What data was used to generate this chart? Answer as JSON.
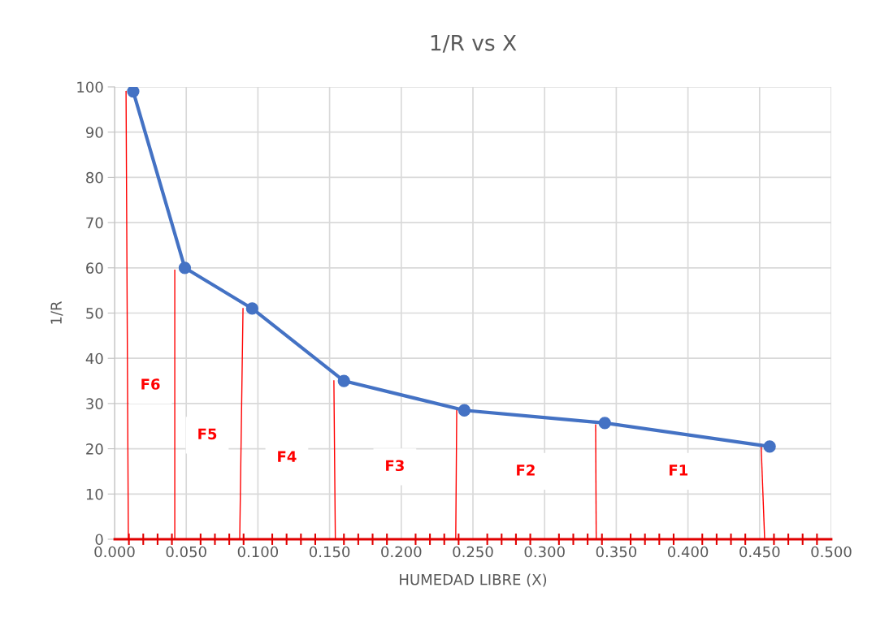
{
  "chart_data": {
    "type": "line",
    "title": "1/R vs X",
    "xlabel": "HUMEDAD LIBRE (X)",
    "ylabel": "1/R",
    "xlim": [
      0,
      0.5
    ],
    "ylim": [
      0,
      100
    ],
    "xticks": [
      {
        "value": 0,
        "label": "0.000"
      },
      {
        "value": 0.01,
        "label": null
      },
      {
        "value": 0.02,
        "label": null
      },
      {
        "value": 0.03,
        "label": null
      },
      {
        "value": 0.04,
        "label": null
      },
      {
        "value": 0.05,
        "label": "0.050"
      },
      {
        "value": 0.06,
        "label": null
      },
      {
        "value": 0.07,
        "label": null
      },
      {
        "value": 0.08,
        "label": null
      },
      {
        "value": 0.09,
        "label": null
      },
      {
        "value": 0.1,
        "label": "0.100"
      },
      {
        "value": 0.11,
        "label": null
      },
      {
        "value": 0.12,
        "label": null
      },
      {
        "value": 0.13,
        "label": null
      },
      {
        "value": 0.14,
        "label": null
      },
      {
        "value": 0.15,
        "label": "0.150"
      },
      {
        "value": 0.16,
        "label": null
      },
      {
        "value": 0.17,
        "label": null
      },
      {
        "value": 0.18,
        "label": null
      },
      {
        "value": 0.19,
        "label": null
      },
      {
        "value": 0.2,
        "label": "0.200"
      },
      {
        "value": 0.21,
        "label": null
      },
      {
        "value": 0.22,
        "label": null
      },
      {
        "value": 0.23,
        "label": null
      },
      {
        "value": 0.24,
        "label": null
      },
      {
        "value": 0.25,
        "label": "0.250"
      },
      {
        "value": 0.26,
        "label": null
      },
      {
        "value": 0.27,
        "label": null
      },
      {
        "value": 0.28,
        "label": null
      },
      {
        "value": 0.29,
        "label": null
      },
      {
        "value": 0.3,
        "label": "0.300"
      },
      {
        "value": 0.31,
        "label": null
      },
      {
        "value": 0.32,
        "label": null
      },
      {
        "value": 0.33,
        "label": null
      },
      {
        "value": 0.34,
        "label": null
      },
      {
        "value": 0.35,
        "label": "0.350"
      },
      {
        "value": 0.36,
        "label": null
      },
      {
        "value": 0.37,
        "label": null
      },
      {
        "value": 0.38,
        "label": null
      },
      {
        "value": 0.39,
        "label": null
      },
      {
        "value": 0.4,
        "label": "0.400"
      },
      {
        "value": 0.41,
        "label": null
      },
      {
        "value": 0.42,
        "label": null
      },
      {
        "value": 0.43,
        "label": null
      },
      {
        "value": 0.44,
        "label": null
      },
      {
        "value": 0.45,
        "label": "0.450"
      },
      {
        "value": 0.46,
        "label": null
      },
      {
        "value": 0.47,
        "label": null
      },
      {
        "value": 0.48,
        "label": null
      },
      {
        "value": 0.49,
        "label": null
      },
      {
        "value": 0.5,
        "label": "0.500"
      }
    ],
    "yticks": [
      0,
      10,
      20,
      30,
      40,
      50,
      60,
      70,
      80,
      90,
      100
    ],
    "grid": true,
    "marker": "circle",
    "line_style": "solid",
    "series": [
      {
        "color": "#4472c4",
        "x": [
          0.013,
          0.049,
          0.096,
          0.16,
          0.244,
          0.342,
          0.457
        ],
        "values": [
          99,
          60,
          51,
          35,
          28.5,
          25.7,
          20.5
        ]
      },
      {
        "color": "#ff0000",
        "marker": "none",
        "x": [
          0.008,
          0.0096
        ],
        "values": [
          99,
          0
        ]
      },
      {
        "color": "#ff0000",
        "marker": "none",
        "x": [
          0.042,
          0.042
        ],
        "values": [
          59.5,
          0
        ]
      },
      {
        "color": "#ff0000",
        "marker": "none",
        "x": [
          0.0896,
          0.0873
        ],
        "values": [
          51,
          0
        ]
      },
      {
        "color": "#ff0000",
        "marker": "none",
        "x": [
          0.153,
          0.154
        ],
        "values": [
          35,
          0
        ]
      },
      {
        "color": "#ff0000",
        "marker": "none",
        "x": [
          0.2387,
          0.238
        ],
        "values": [
          29,
          0
        ]
      },
      {
        "color": "#ff0000",
        "marker": "none",
        "x": [
          0.3356,
          0.336
        ],
        "values": [
          25.3,
          0
        ]
      },
      {
        "color": "#ff0000",
        "marker": "none",
        "x": [
          0.451,
          0.4535
        ],
        "values": [
          21,
          0
        ]
      }
    ],
    "annotations": [
      "F6",
      "F5",
      "F4",
      "F3",
      "F2",
      "F1"
    ]
  }
}
